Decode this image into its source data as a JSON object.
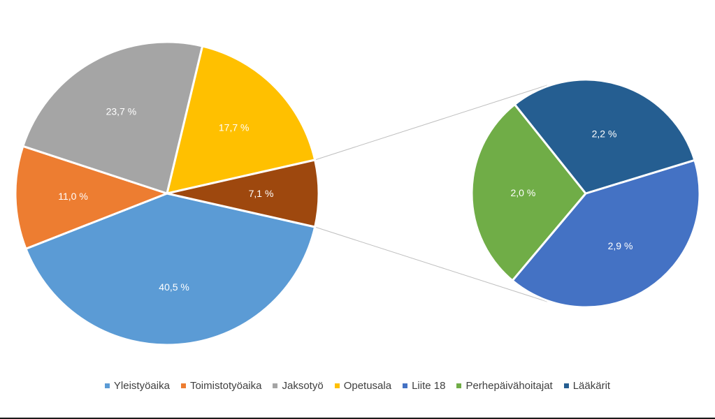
{
  "chart_data": {
    "type": "pie",
    "subtype": "pie-of-pie",
    "title": "",
    "legend_position": "bottom",
    "unit": "%",
    "slices": [
      {
        "name": "Yleistyöaika",
        "value": 40.5,
        "label": "40,5 %",
        "color": "#5B9BD5",
        "group": "main"
      },
      {
        "name": "Toimistotyöaika",
        "value": 11.0,
        "label": "11,0 %",
        "color": "#ED7D31",
        "group": "main"
      },
      {
        "name": "Jaksotyö",
        "value": 23.7,
        "label": "23,7 %",
        "color": "#A5A5A5",
        "group": "main"
      },
      {
        "name": "Opetusala",
        "value": 17.7,
        "label": "17,7 %",
        "color": "#FFC000",
        "group": "main"
      },
      {
        "name": "",
        "value": 7.1,
        "label": "7,1 %",
        "color": "#9E480E",
        "group": "main-other"
      },
      {
        "name": "Liite 18",
        "value": 2.9,
        "label": "2,9 %",
        "color": "#4472C4",
        "group": "secondary"
      },
      {
        "name": "Perhepäivähoitajat",
        "value": 2.0,
        "label": "2,0 %",
        "color": "#70AD47",
        "group": "secondary"
      },
      {
        "name": "Lääkärit",
        "value": 2.2,
        "label": "2,2 %",
        "color": "#255E91",
        "group": "secondary"
      }
    ],
    "legend": [
      {
        "label": "Yleistyöaika",
        "color": "#5B9BD5"
      },
      {
        "label": "Toimistotyöaika",
        "color": "#ED7D31"
      },
      {
        "label": "Jaksotyö",
        "color": "#A5A5A5"
      },
      {
        "label": "Opetusala",
        "color": "#FFC000"
      },
      {
        "label": "Liite 18",
        "color": "#4472C4"
      },
      {
        "label": "Perhepäivähoitajat",
        "color": "#70AD47"
      },
      {
        "label": "Lääkärit",
        "color": "#255E91"
      }
    ]
  }
}
